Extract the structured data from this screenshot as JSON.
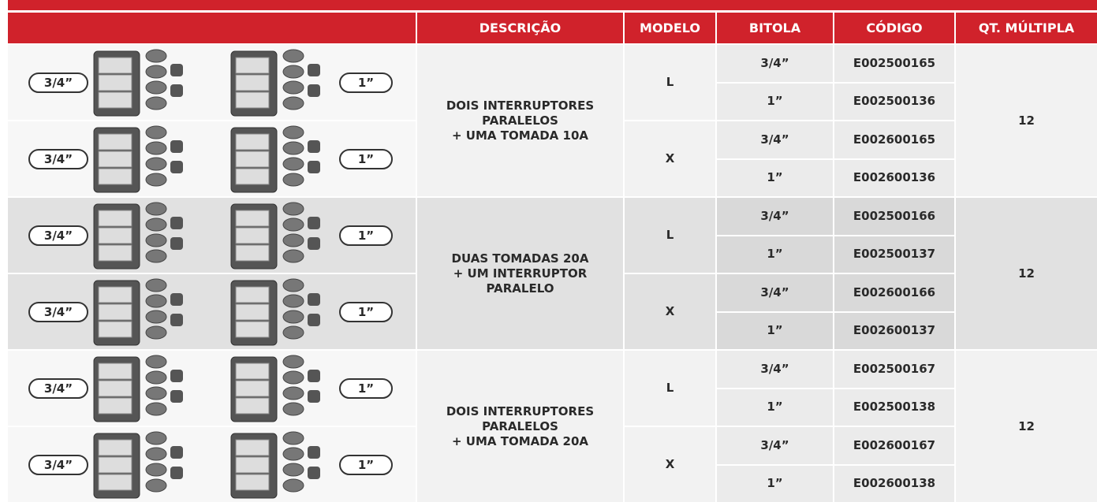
{
  "header": {
    "columns": [
      "DESCRIÇÃO",
      "MODELO",
      "BITOLA",
      "CÓDIGO",
      "QT. MÚLTIPLA"
    ]
  },
  "groups": [
    {
      "description": [
        "DOIS INTERRUPTORES",
        "PARALELOS",
        "+ UMA TOMADA 10A"
      ],
      "quantity": "12",
      "models": [
        {
          "model": "L",
          "image_labels": [
            "3/4”",
            "1”"
          ],
          "items": [
            {
              "bitola": "3/4”",
              "codigo": "E002500165"
            },
            {
              "bitola": "1”",
              "codigo": "E002500136"
            }
          ]
        },
        {
          "model": "X",
          "image_labels": [
            "3/4”",
            "1”"
          ],
          "items": [
            {
              "bitola": "3/4”",
              "codigo": "E002600165"
            },
            {
              "bitola": "1”",
              "codigo": "E002600136"
            }
          ]
        }
      ]
    },
    {
      "description": [
        "DUAS TOMADAS 20A",
        "+ UM INTERRUPTOR",
        "PARALELO"
      ],
      "quantity": "12",
      "models": [
        {
          "model": "L",
          "image_labels": [
            "3/4”",
            "1”"
          ],
          "items": [
            {
              "bitola": "3/4”",
              "codigo": "E002500166"
            },
            {
              "bitola": "1”",
              "codigo": "E002500137"
            }
          ]
        },
        {
          "model": "X",
          "image_labels": [
            "3/4”",
            "1”"
          ],
          "items": [
            {
              "bitola": "3/4”",
              "codigo": "E002600166"
            },
            {
              "bitola": "1”",
              "codigo": "E002600137"
            }
          ]
        }
      ]
    },
    {
      "description": [
        "DOIS INTERRUPTORES",
        "PARALELOS",
        "+ UMA TOMADA 20A"
      ],
      "quantity": "12",
      "models": [
        {
          "model": "L",
          "image_labels": [
            "3/4”",
            "1”"
          ],
          "items": [
            {
              "bitola": "3/4”",
              "codigo": "E002500167"
            },
            {
              "bitola": "1”",
              "codigo": "E002500138"
            }
          ]
        },
        {
          "model": "X",
          "image_labels": [
            "3/4”",
            "1”"
          ],
          "items": [
            {
              "bitola": "3/4”",
              "codigo": "E002600167"
            },
            {
              "bitola": "1”",
              "codigo": "E002600138"
            }
          ]
        }
      ]
    }
  ]
}
